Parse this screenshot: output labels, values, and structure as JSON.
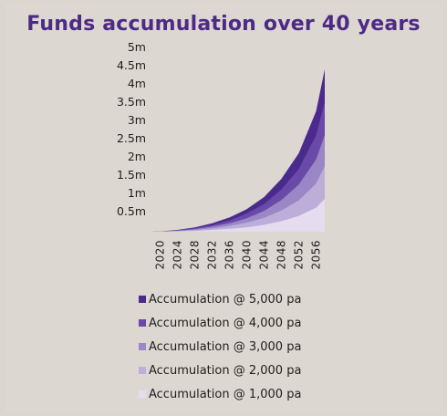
{
  "chart_data": {
    "type": "area",
    "title": "Funds accumulation over 40 years",
    "xlabel": "",
    "ylabel": "",
    "x": [
      2018,
      2020,
      2024,
      2028,
      2032,
      2036,
      2040,
      2044,
      2048,
      2052,
      2056,
      2058
    ],
    "x_tick_labels": [
      "2020",
      "2024",
      "2028",
      "2032",
      "2036",
      "2040",
      "2044",
      "2048",
      "2052",
      "2056"
    ],
    "x_ticks": [
      2020,
      2024,
      2028,
      2032,
      2036,
      2040,
      2044,
      2048,
      2052,
      2056
    ],
    "y_tick_labels": [
      "0.5m",
      "1m",
      "1.5m",
      "2m",
      "2.5m",
      "3m",
      "3.5m",
      "4m",
      "4.5m",
      "5m"
    ],
    "y_ticks": [
      0.5,
      1,
      1.5,
      2,
      2.5,
      3,
      3.5,
      4,
      4.5,
      5
    ],
    "ylim": [
      0,
      5
    ],
    "grid": false,
    "legend_position": "bottom",
    "series": [
      {
        "name": "Accumulation @ 5,000 pa",
        "color": "#4a2a8c",
        "values": [
          0,
          0.01,
          0.05,
          0.12,
          0.23,
          0.39,
          0.62,
          0.95,
          1.45,
          2.15,
          3.3,
          4.45
        ]
      },
      {
        "name": "Accumulation @ 4,000 pa",
        "color": "#6a4aa8",
        "values": [
          0,
          0.008,
          0.04,
          0.1,
          0.18,
          0.31,
          0.5,
          0.76,
          1.16,
          1.72,
          2.64,
          3.55
        ]
      },
      {
        "name": "Accumulation @ 3,000 pa",
        "color": "#9b87c6",
        "values": [
          0,
          0.006,
          0.03,
          0.07,
          0.14,
          0.23,
          0.37,
          0.57,
          0.87,
          1.29,
          1.98,
          2.65
        ]
      },
      {
        "name": "Accumulation @ 2,000 pa",
        "color": "#bcaed8",
        "values": [
          0,
          0.004,
          0.02,
          0.05,
          0.09,
          0.16,
          0.25,
          0.38,
          0.58,
          0.86,
          1.32,
          1.8
        ]
      },
      {
        "name": "Accumulation @ 1,000 pa",
        "color": "#e4ddef",
        "values": [
          0,
          0.002,
          0.01,
          0.02,
          0.05,
          0.08,
          0.12,
          0.19,
          0.29,
          0.43,
          0.66,
          0.9
        ]
      }
    ]
  }
}
